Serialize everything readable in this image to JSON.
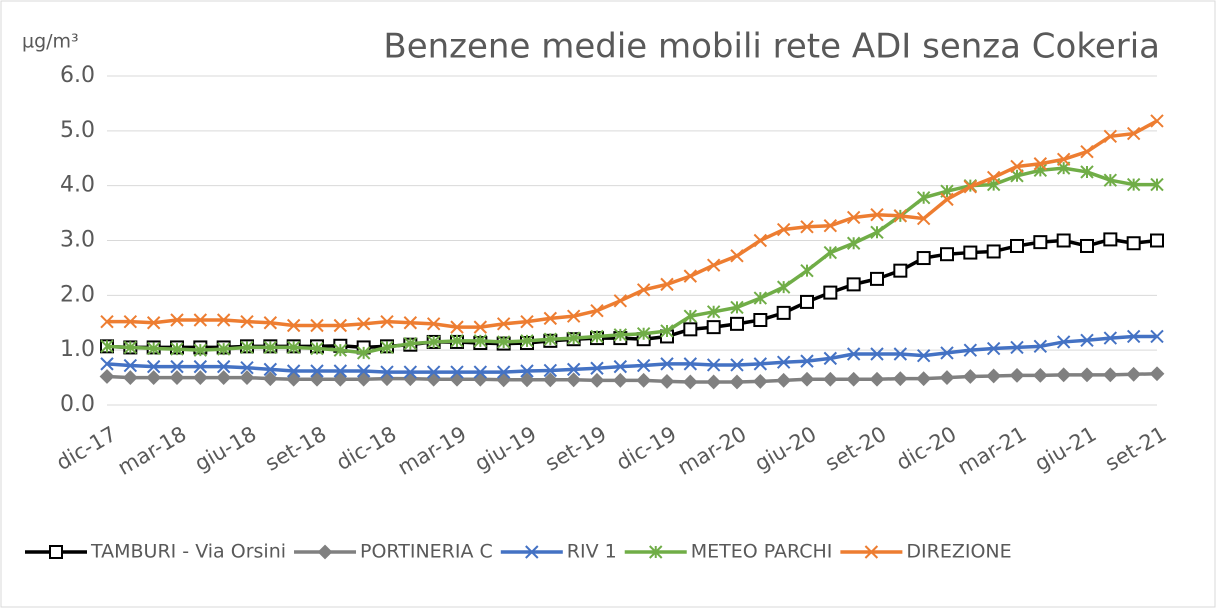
{
  "chart_data": {
    "type": "line",
    "title": "Benzene medie mobili rete ADI senza Cokeria",
    "y_label": "µg/m³",
    "categories": [
      "dic-17",
      null,
      null,
      "mar-18",
      null,
      null,
      "giu-18",
      null,
      null,
      "set-18",
      null,
      null,
      "dic-18",
      null,
      null,
      "mar-19",
      null,
      null,
      "giu-19",
      null,
      null,
      "set-19",
      null,
      null,
      "dic-19",
      null,
      null,
      "mar-20",
      null,
      null,
      "giu-20",
      null,
      null,
      "set-20",
      null,
      null,
      "dic-20",
      null,
      null,
      "mar-21",
      null,
      null,
      "giu-21",
      null,
      null,
      "set-21"
    ],
    "ylim": [
      0,
      6
    ],
    "yticks": [
      {
        "value": 0,
        "label": "0.0"
      },
      {
        "value": 1,
        "label": "1.0"
      },
      {
        "value": 2,
        "label": "2.0"
      },
      {
        "value": 3,
        "label": "3.0"
      },
      {
        "value": 4,
        "label": "4.0"
      },
      {
        "value": 5,
        "label": "5.0"
      },
      {
        "value": 6,
        "label": "6.0"
      }
    ],
    "grid": true,
    "legend": "bottom",
    "series": [
      {
        "name": "TAMBURI - Via Orsini",
        "color": "#000000",
        "marker": "square",
        "values": [
          1.07,
          1.05,
          1.05,
          1.05,
          1.05,
          1.05,
          1.07,
          1.07,
          1.07,
          1.07,
          1.08,
          1.05,
          1.07,
          1.1,
          1.15,
          1.15,
          1.13,
          1.12,
          1.13,
          1.17,
          1.2,
          1.22,
          1.22,
          1.2,
          1.25,
          1.38,
          1.42,
          1.48,
          1.55,
          1.68,
          1.88,
          2.05,
          2.2,
          2.3,
          2.45,
          2.68,
          2.75,
          2.78,
          2.8,
          2.9,
          2.97,
          3.0,
          2.9,
          3.02,
          2.95,
          3.0
        ]
      },
      {
        "name": "PORTINERIA C",
        "color": "#808080",
        "marker": "diamond",
        "values": [
          0.52,
          0.5,
          0.5,
          0.5,
          0.5,
          0.5,
          0.5,
          0.48,
          0.47,
          0.47,
          0.47,
          0.47,
          0.48,
          0.48,
          0.47,
          0.47,
          0.47,
          0.46,
          0.46,
          0.46,
          0.46,
          0.45,
          0.45,
          0.45,
          0.43,
          0.42,
          0.42,
          0.42,
          0.43,
          0.45,
          0.47,
          0.47,
          0.47,
          0.47,
          0.48,
          0.48,
          0.5,
          0.52,
          0.53,
          0.54,
          0.54,
          0.55,
          0.55,
          0.55,
          0.56,
          0.57
        ]
      },
      {
        "name": "RIV 1",
        "color": "#4472c4",
        "marker": "x",
        "values": [
          0.75,
          0.72,
          0.7,
          0.7,
          0.7,
          0.7,
          0.68,
          0.65,
          0.62,
          0.62,
          0.62,
          0.62,
          0.6,
          0.6,
          0.6,
          0.6,
          0.6,
          0.6,
          0.62,
          0.63,
          0.65,
          0.67,
          0.7,
          0.72,
          0.75,
          0.75,
          0.73,
          0.73,
          0.75,
          0.78,
          0.8,
          0.85,
          0.93,
          0.93,
          0.93,
          0.9,
          0.95,
          1.0,
          1.03,
          1.05,
          1.07,
          1.15,
          1.18,
          1.22,
          1.25,
          1.25
        ]
      },
      {
        "name": "METEO PARCHI",
        "color": "#70ad47",
        "marker": "star",
        "values": [
          1.07,
          1.05,
          1.03,
          1.02,
          1.0,
          1.02,
          1.05,
          1.05,
          1.05,
          1.03,
          1.0,
          0.95,
          1.05,
          1.12,
          1.15,
          1.17,
          1.17,
          1.15,
          1.17,
          1.2,
          1.22,
          1.25,
          1.28,
          1.3,
          1.35,
          1.62,
          1.7,
          1.78,
          1.95,
          2.15,
          2.45,
          2.78,
          2.95,
          3.15,
          3.45,
          3.78,
          3.9,
          4.0,
          4.02,
          4.18,
          4.28,
          4.32,
          4.25,
          4.1,
          4.02,
          4.02
        ]
      },
      {
        "name": "DIREZIONE",
        "color": "#ed7d31",
        "marker": "x",
        "values": [
          1.52,
          1.52,
          1.5,
          1.55,
          1.55,
          1.55,
          1.52,
          1.5,
          1.45,
          1.45,
          1.45,
          1.48,
          1.52,
          1.5,
          1.48,
          1.42,
          1.42,
          1.48,
          1.52,
          1.58,
          1.62,
          1.72,
          1.9,
          2.1,
          2.2,
          2.35,
          2.55,
          2.72,
          3.0,
          3.2,
          3.25,
          3.27,
          3.42,
          3.47,
          3.45,
          3.4,
          3.75,
          3.98,
          4.15,
          4.35,
          4.4,
          4.48,
          4.62,
          4.9,
          4.95,
          5.18
        ]
      }
    ]
  }
}
